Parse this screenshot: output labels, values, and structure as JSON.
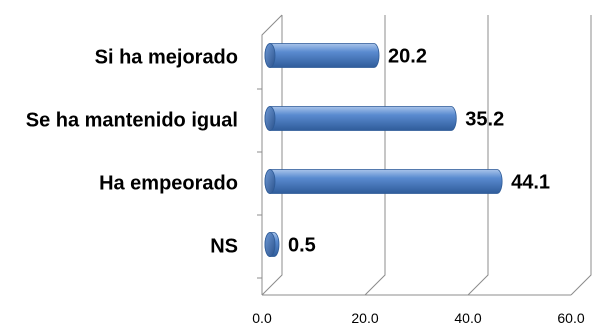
{
  "chart_data": {
    "type": "bar",
    "orientation": "horizontal",
    "categories": [
      "Si ha mejorado",
      "Se ha mantenido igual",
      "Ha empeorado",
      "NS"
    ],
    "values": [
      20.2,
      35.2,
      44.1,
      0.5
    ],
    "value_labels": [
      "20.2",
      "35.2",
      "44.1",
      "0.5"
    ],
    "xlim": [
      0,
      60
    ],
    "x_ticks": [
      0,
      20,
      40,
      60
    ],
    "x_tick_labels": [
      "0.0",
      "20.0",
      "40.0",
      "60.0"
    ],
    "grid": true,
    "legend": "none",
    "bar_color": "#4f81bd",
    "title": "",
    "xlabel": "",
    "ylabel": ""
  }
}
